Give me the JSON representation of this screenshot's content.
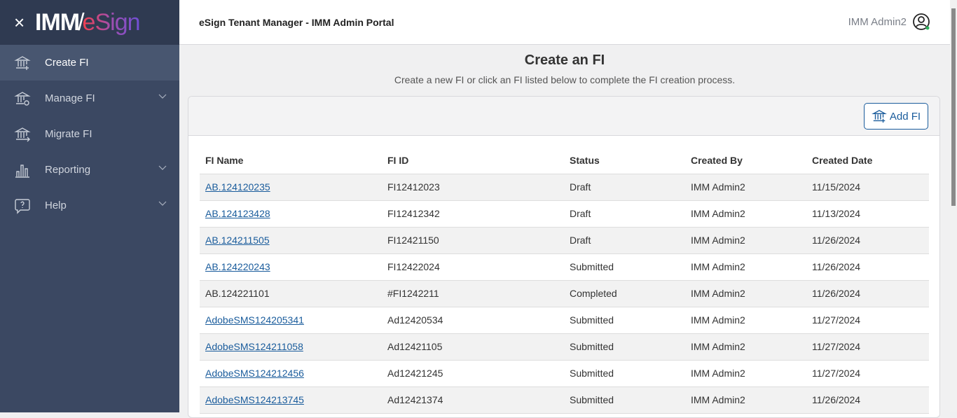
{
  "sidebar": {
    "logo_left": "IMM",
    "logo_right": "eSign",
    "items": [
      {
        "label": "Create FI",
        "icon": "bank-plus-icon",
        "active": true,
        "expandable": false
      },
      {
        "label": "Manage FI",
        "icon": "bank-gear-icon",
        "expandable": true
      },
      {
        "label": "Migrate FI",
        "icon": "bank-arrow-icon",
        "expandable": false
      },
      {
        "label": "Reporting",
        "icon": "bar-chart-icon",
        "expandable": true
      },
      {
        "label": "Help",
        "icon": "help-icon",
        "expandable": true
      }
    ]
  },
  "header": {
    "title": "eSign Tenant Manager - IMM Admin Portal",
    "user": "IMM Admin2"
  },
  "page": {
    "title": "Create an FI",
    "subtitle": "Create a new FI or click an FI listed below to complete the FI creation process.",
    "add_label": "Add FI"
  },
  "table": {
    "columns": [
      "FI Name",
      "FI ID",
      "Status",
      "Created By",
      "Created Date"
    ],
    "rows": [
      {
        "name": "AB.124120235",
        "id": "FI12412023",
        "status": "Draft",
        "by": "IMM Admin2",
        "date": "11/15/2024",
        "link": true
      },
      {
        "name": "AB.124123428",
        "id": "FI12412342",
        "status": "Draft",
        "by": "IMM Admin2",
        "date": "11/13/2024",
        "link": true
      },
      {
        "name": "AB.124211505",
        "id": "FI12421150",
        "status": "Draft",
        "by": "IMM Admin2",
        "date": "11/26/2024",
        "link": true
      },
      {
        "name": "AB.124220243",
        "id": "FI12422024",
        "status": "Submitted",
        "by": "IMM Admin2",
        "date": "11/26/2024",
        "link": true
      },
      {
        "name": "AB.124221101",
        "id": "#FI1242211",
        "status": "Completed",
        "by": "IMM Admin2",
        "date": "11/26/2024",
        "link": false
      },
      {
        "name": "AdobeSMS124205341",
        "id": "Ad12420534",
        "status": "Submitted",
        "by": "IMM Admin2",
        "date": "11/27/2024",
        "link": true
      },
      {
        "name": "AdobeSMS124211058",
        "id": "Ad12421105",
        "status": "Submitted",
        "by": "IMM Admin2",
        "date": "11/27/2024",
        "link": true
      },
      {
        "name": "AdobeSMS124212456",
        "id": "Ad12421245",
        "status": "Submitted",
        "by": "IMM Admin2",
        "date": "11/27/2024",
        "link": true
      },
      {
        "name": "AdobeSMS124213745",
        "id": "Ad12421374",
        "status": "Submitted",
        "by": "IMM Admin2",
        "date": "11/26/2024",
        "link": true
      }
    ]
  }
}
